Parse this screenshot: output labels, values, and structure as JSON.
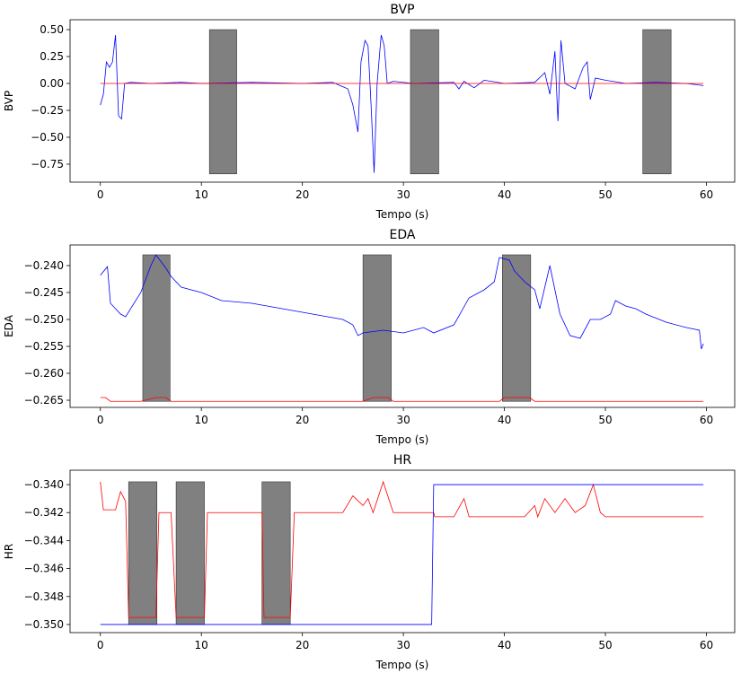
{
  "chart_data": [
    {
      "type": "line",
      "title": "BVP",
      "x_label": "Tempo (s)",
      "y_label": "BVP",
      "xlim": [
        -3,
        62.8
      ],
      "ylim": [
        -0.917,
        0.592
      ],
      "xticks": [
        0,
        10,
        20,
        30,
        40,
        50,
        60
      ],
      "yticks": [
        {
          "value": 0.5,
          "label": "0.50"
        },
        {
          "value": 0.25,
          "label": "0.25"
        },
        {
          "value": 0,
          "label": "0.00"
        },
        {
          "value": -0.25,
          "label": "−0.25"
        },
        {
          "value": -0.5,
          "label": "−0.50"
        },
        {
          "value": -0.75,
          "label": "−0.75"
        }
      ],
      "span_color": "#808080",
      "spans": [
        {
          "x": [
            10.8,
            13.5
          ],
          "y": [
            -0.84,
            0.5
          ]
        },
        {
          "x": [
            30.7,
            33.5
          ],
          "y": [
            -0.84,
            0.5
          ]
        },
        {
          "x": [
            53.7,
            56.5
          ],
          "y": [
            -0.84,
            0.5
          ]
        }
      ],
      "series": [
        {
          "color": "#0000ff",
          "x": [
            0,
            0.3,
            0.6,
            0.9,
            1.2,
            1.5,
            1.8,
            2.1,
            2.4,
            3,
            5,
            8,
            10,
            15,
            20,
            23,
            24.5,
            25,
            25.5,
            25.8,
            26.2,
            26.5,
            26.8,
            27.1,
            27.4,
            27.8,
            28.1,
            28.4,
            29,
            31,
            35,
            35.5,
            36,
            37,
            38,
            40,
            43,
            44,
            44.5,
            45,
            45.3,
            45.6,
            46,
            47,
            47.8,
            48.2,
            48.5,
            49,
            50,
            52,
            55,
            58,
            59.7
          ],
          "values": [
            -0.2,
            -0.1,
            0.2,
            0.15,
            0.2,
            0.45,
            -0.3,
            -0.33,
            0,
            0.01,
            0,
            0.01,
            0,
            0.01,
            0,
            0.01,
            -0.05,
            -0.2,
            -0.45,
            0.2,
            0.4,
            0.35,
            -0.2,
            -0.83,
            0,
            0.45,
            0.35,
            0,
            0.02,
            0,
            0.01,
            -0.05,
            0.02,
            -0.04,
            0.03,
            0,
            0.01,
            0.1,
            -0.1,
            0.3,
            -0.35,
            0.4,
            0,
            -0.05,
            0.15,
            0.2,
            -0.15,
            0.05,
            0.03,
            0,
            0.01,
            0,
            -0.02
          ]
        },
        {
          "color": "#ff0000",
          "x": [
            0,
            59.7
          ],
          "values": [
            0,
            0
          ]
        }
      ]
    },
    {
      "type": "line",
      "title": "EDA",
      "x_label": "Tempo (s)",
      "y_label": "EDA",
      "xlim": [
        -3,
        62.8
      ],
      "ylim": [
        -0.26633,
        -0.23617
      ],
      "xticks": [
        0,
        10,
        20,
        30,
        40,
        50,
        60
      ],
      "yticks": [
        {
          "value": -0.24,
          "label": "−0.240"
        },
        {
          "value": -0.245,
          "label": "−0.245"
        },
        {
          "value": -0.25,
          "label": "−0.250"
        },
        {
          "value": -0.255,
          "label": "−0.255"
        },
        {
          "value": -0.26,
          "label": "−0.260"
        },
        {
          "value": -0.265,
          "label": "−0.265"
        }
      ],
      "span_color": "#808080",
      "spans": [
        {
          "x": [
            4.2,
            6.9
          ],
          "y": [
            -0.2652,
            -0.238
          ]
        },
        {
          "x": [
            26.0,
            28.8
          ],
          "y": [
            -0.2652,
            -0.238
          ]
        },
        {
          "x": [
            39.8,
            42.6
          ],
          "y": [
            -0.2652,
            -0.238
          ]
        }
      ],
      "series": [
        {
          "color": "#0000ff",
          "x": [
            0,
            0.7,
            1,
            2,
            2.5,
            4,
            5,
            5.5,
            6.5,
            7,
            8,
            10,
            12,
            15,
            18,
            21,
            24,
            25,
            25.5,
            26,
            28,
            30,
            32,
            33,
            35,
            36.5,
            38,
            39,
            39.5,
            40.5,
            41,
            42,
            43,
            43.5,
            44.5,
            45.5,
            46.5,
            47.5,
            48.5,
            49.5,
            50.5,
            51,
            52,
            53,
            54,
            56,
            58,
            59.3,
            59.5,
            59.7
          ],
          "values": [
            -0.2418,
            -0.2402,
            -0.247,
            -0.249,
            -0.2495,
            -0.245,
            -0.24,
            -0.238,
            -0.2405,
            -0.242,
            -0.244,
            -0.245,
            -0.2465,
            -0.247,
            -0.248,
            -0.249,
            -0.25,
            -0.251,
            -0.253,
            -0.2525,
            -0.252,
            -0.2525,
            -0.2515,
            -0.2525,
            -0.251,
            -0.246,
            -0.2445,
            -0.243,
            -0.2385,
            -0.239,
            -0.241,
            -0.243,
            -0.2445,
            -0.248,
            -0.24,
            -0.249,
            -0.253,
            -0.2535,
            -0.25,
            -0.25,
            -0.249,
            -0.2465,
            -0.2475,
            -0.248,
            -0.249,
            -0.2505,
            -0.2515,
            -0.252,
            -0.2555,
            -0.2545
          ]
        },
        {
          "color": "#ff0000",
          "x": [
            0,
            0.5,
            1,
            4,
            5.5,
            6.5,
            7,
            26,
            27,
            28.5,
            29,
            39.5,
            40,
            42.5,
            43,
            59.7
          ],
          "values": [
            -0.2645,
            -0.2645,
            -0.2652,
            -0.2652,
            -0.2645,
            -0.2645,
            -0.2652,
            -0.2652,
            -0.2645,
            -0.2645,
            -0.2652,
            -0.2652,
            -0.2645,
            -0.2645,
            -0.2652,
            -0.2652
          ]
        }
      ]
    },
    {
      "type": "line",
      "title": "HR",
      "x_label": "Tempo (s)",
      "y_label": "HR",
      "xlim": [
        -3,
        62.8
      ],
      "ylim": [
        -0.35058,
        -0.33897
      ],
      "xticks": [
        0,
        10,
        20,
        30,
        40,
        50,
        60
      ],
      "yticks": [
        {
          "value": -0.34,
          "label": "−0.340"
        },
        {
          "value": -0.342,
          "label": "−0.342"
        },
        {
          "value": -0.344,
          "label": "−0.344"
        },
        {
          "value": -0.346,
          "label": "−0.346"
        },
        {
          "value": -0.348,
          "label": "−0.348"
        },
        {
          "value": -0.35,
          "label": "−0.350"
        }
      ],
      "span_color": "#808080",
      "spans": [
        {
          "x": [
            2.8,
            5.6
          ],
          "y": [
            -0.35,
            -0.3398
          ]
        },
        {
          "x": [
            7.5,
            10.3
          ],
          "y": [
            -0.35,
            -0.3398
          ]
        },
        {
          "x": [
            16.0,
            18.8
          ],
          "y": [
            -0.35,
            -0.3398
          ]
        }
      ],
      "series": [
        {
          "color": "#ff0000",
          "x": [
            0,
            0.3,
            1.5,
            2,
            2.5,
            2.8,
            5.5,
            5.8,
            7,
            7.5,
            10.3,
            10.6,
            16,
            16.2,
            18.8,
            19.2,
            24,
            25,
            26,
            26.5,
            27,
            28,
            29,
            33,
            33.1,
            35,
            36,
            36.5,
            42,
            43,
            43.3,
            44,
            45,
            46,
            47,
            48,
            48.8,
            49.5,
            50,
            55,
            59.7
          ],
          "values": [
            -0.3398,
            -0.3418,
            -0.3418,
            -0.3405,
            -0.3412,
            -0.3495,
            -0.3495,
            -0.342,
            -0.342,
            -0.3495,
            -0.3495,
            -0.342,
            -0.342,
            -0.3495,
            -0.3495,
            -0.342,
            -0.342,
            -0.3408,
            -0.3415,
            -0.341,
            -0.342,
            -0.3398,
            -0.342,
            -0.342,
            -0.3423,
            -0.3423,
            -0.341,
            -0.3423,
            -0.3423,
            -0.3415,
            -0.3423,
            -0.341,
            -0.342,
            -0.341,
            -0.342,
            -0.3415,
            -0.34,
            -0.342,
            -0.3423,
            -0.3423,
            -0.3423
          ]
        },
        {
          "color": "#0000ff",
          "x": [
            0,
            32.8,
            33,
            59.7
          ],
          "values": [
            -0.35,
            -0.35,
            -0.34,
            -0.34
          ]
        }
      ]
    }
  ]
}
